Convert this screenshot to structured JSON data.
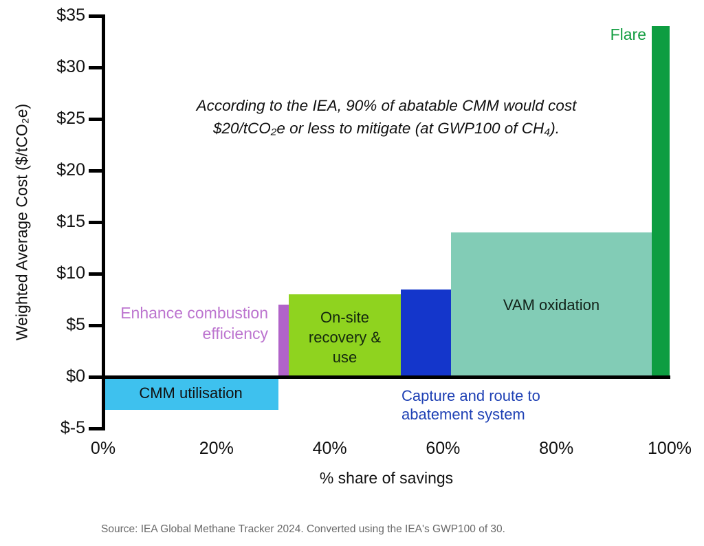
{
  "figure": {
    "source_note": "Source: IEA Global Methane Tracker 2024. Converted using the IEA's GWP100 of 30."
  },
  "chart_data": {
    "type": "bar",
    "variant": "marginal-abatement-cost-curve (variable-width bars, labeled directly, no legend)",
    "annotation": "According to the IEA, 90% of abatable CMM would cost\n$20/tCO₂e or less to mitigate (at GWP100 of CH₄).",
    "xlabel": "% share of savings",
    "ylabel": "Weighted Average Cost ($/tCO₂e)",
    "ylim": [
      -5,
      35
    ],
    "xlim": [
      0,
      100
    ],
    "grid": false,
    "y_ticks": [
      {
        "value": 35,
        "label": "$35"
      },
      {
        "value": 30,
        "label": "$30"
      },
      {
        "value": 25,
        "label": "$25"
      },
      {
        "value": 20,
        "label": "$20"
      },
      {
        "value": 15,
        "label": "$15"
      },
      {
        "value": 10,
        "label": "$10"
      },
      {
        "value": 5,
        "label": "$5"
      },
      {
        "value": 0,
        "label": "$0"
      },
      {
        "value": -5,
        "label": "$-5"
      }
    ],
    "x_ticks": [
      {
        "value": 0,
        "label": "0%"
      },
      {
        "value": 20,
        "label": "20%"
      },
      {
        "value": 40,
        "label": "40%"
      },
      {
        "value": 60,
        "label": "60%"
      },
      {
        "value": 80,
        "label": "80%"
      },
      {
        "value": 100,
        "label": "100%"
      }
    ],
    "segments": [
      {
        "id": "cmm-utilisation",
        "label": "CMM utilisation",
        "share_start_pct": 0,
        "share_end_pct": 31,
        "cost_usd_per_tco2e": -3,
        "color": "#3EC1EE",
        "label_color": "#111111",
        "label_placement": "inside bar, below axis"
      },
      {
        "id": "enhance-combustion-efficiency",
        "label": "Enhance combustion\nefficiency",
        "share_start_pct": 31,
        "share_end_pct": 32.8,
        "cost_usd_per_tco2e": 7,
        "color": "#B163C9",
        "label_color": "#BC74CF",
        "label_placement": "left of bar"
      },
      {
        "id": "on-site-recovery-and-use",
        "label": "On-site\nrecovery &\nuse",
        "share_start_pct": 32.8,
        "share_end_pct": 52.5,
        "cost_usd_per_tco2e": 8,
        "color": "#8FD31F",
        "label_color": "#14280E",
        "label_placement": "inside bar"
      },
      {
        "id": "capture-and-route-to-abatement-system",
        "label": "Capture and route to\nabatement system",
        "share_start_pct": 52.5,
        "share_end_pct": 61.4,
        "cost_usd_per_tco2e": 8.5,
        "color": "#1436CB",
        "label_color": "#1E40B4",
        "label_placement": "below axis, right of bar base"
      },
      {
        "id": "vam-oxidation",
        "label": "VAM oxidation",
        "share_start_pct": 61.4,
        "share_end_pct": 96.8,
        "cost_usd_per_tco2e": 14,
        "color": "#82CCB6",
        "label_color": "#122219",
        "label_placement": "inside bar"
      },
      {
        "id": "flare",
        "label": "Flare",
        "share_start_pct": 96.8,
        "share_end_pct": 100,
        "cost_usd_per_tco2e": 34,
        "color": "#0D9D41",
        "label_color": "#149E42",
        "label_placement": "left of bar top"
      }
    ]
  }
}
